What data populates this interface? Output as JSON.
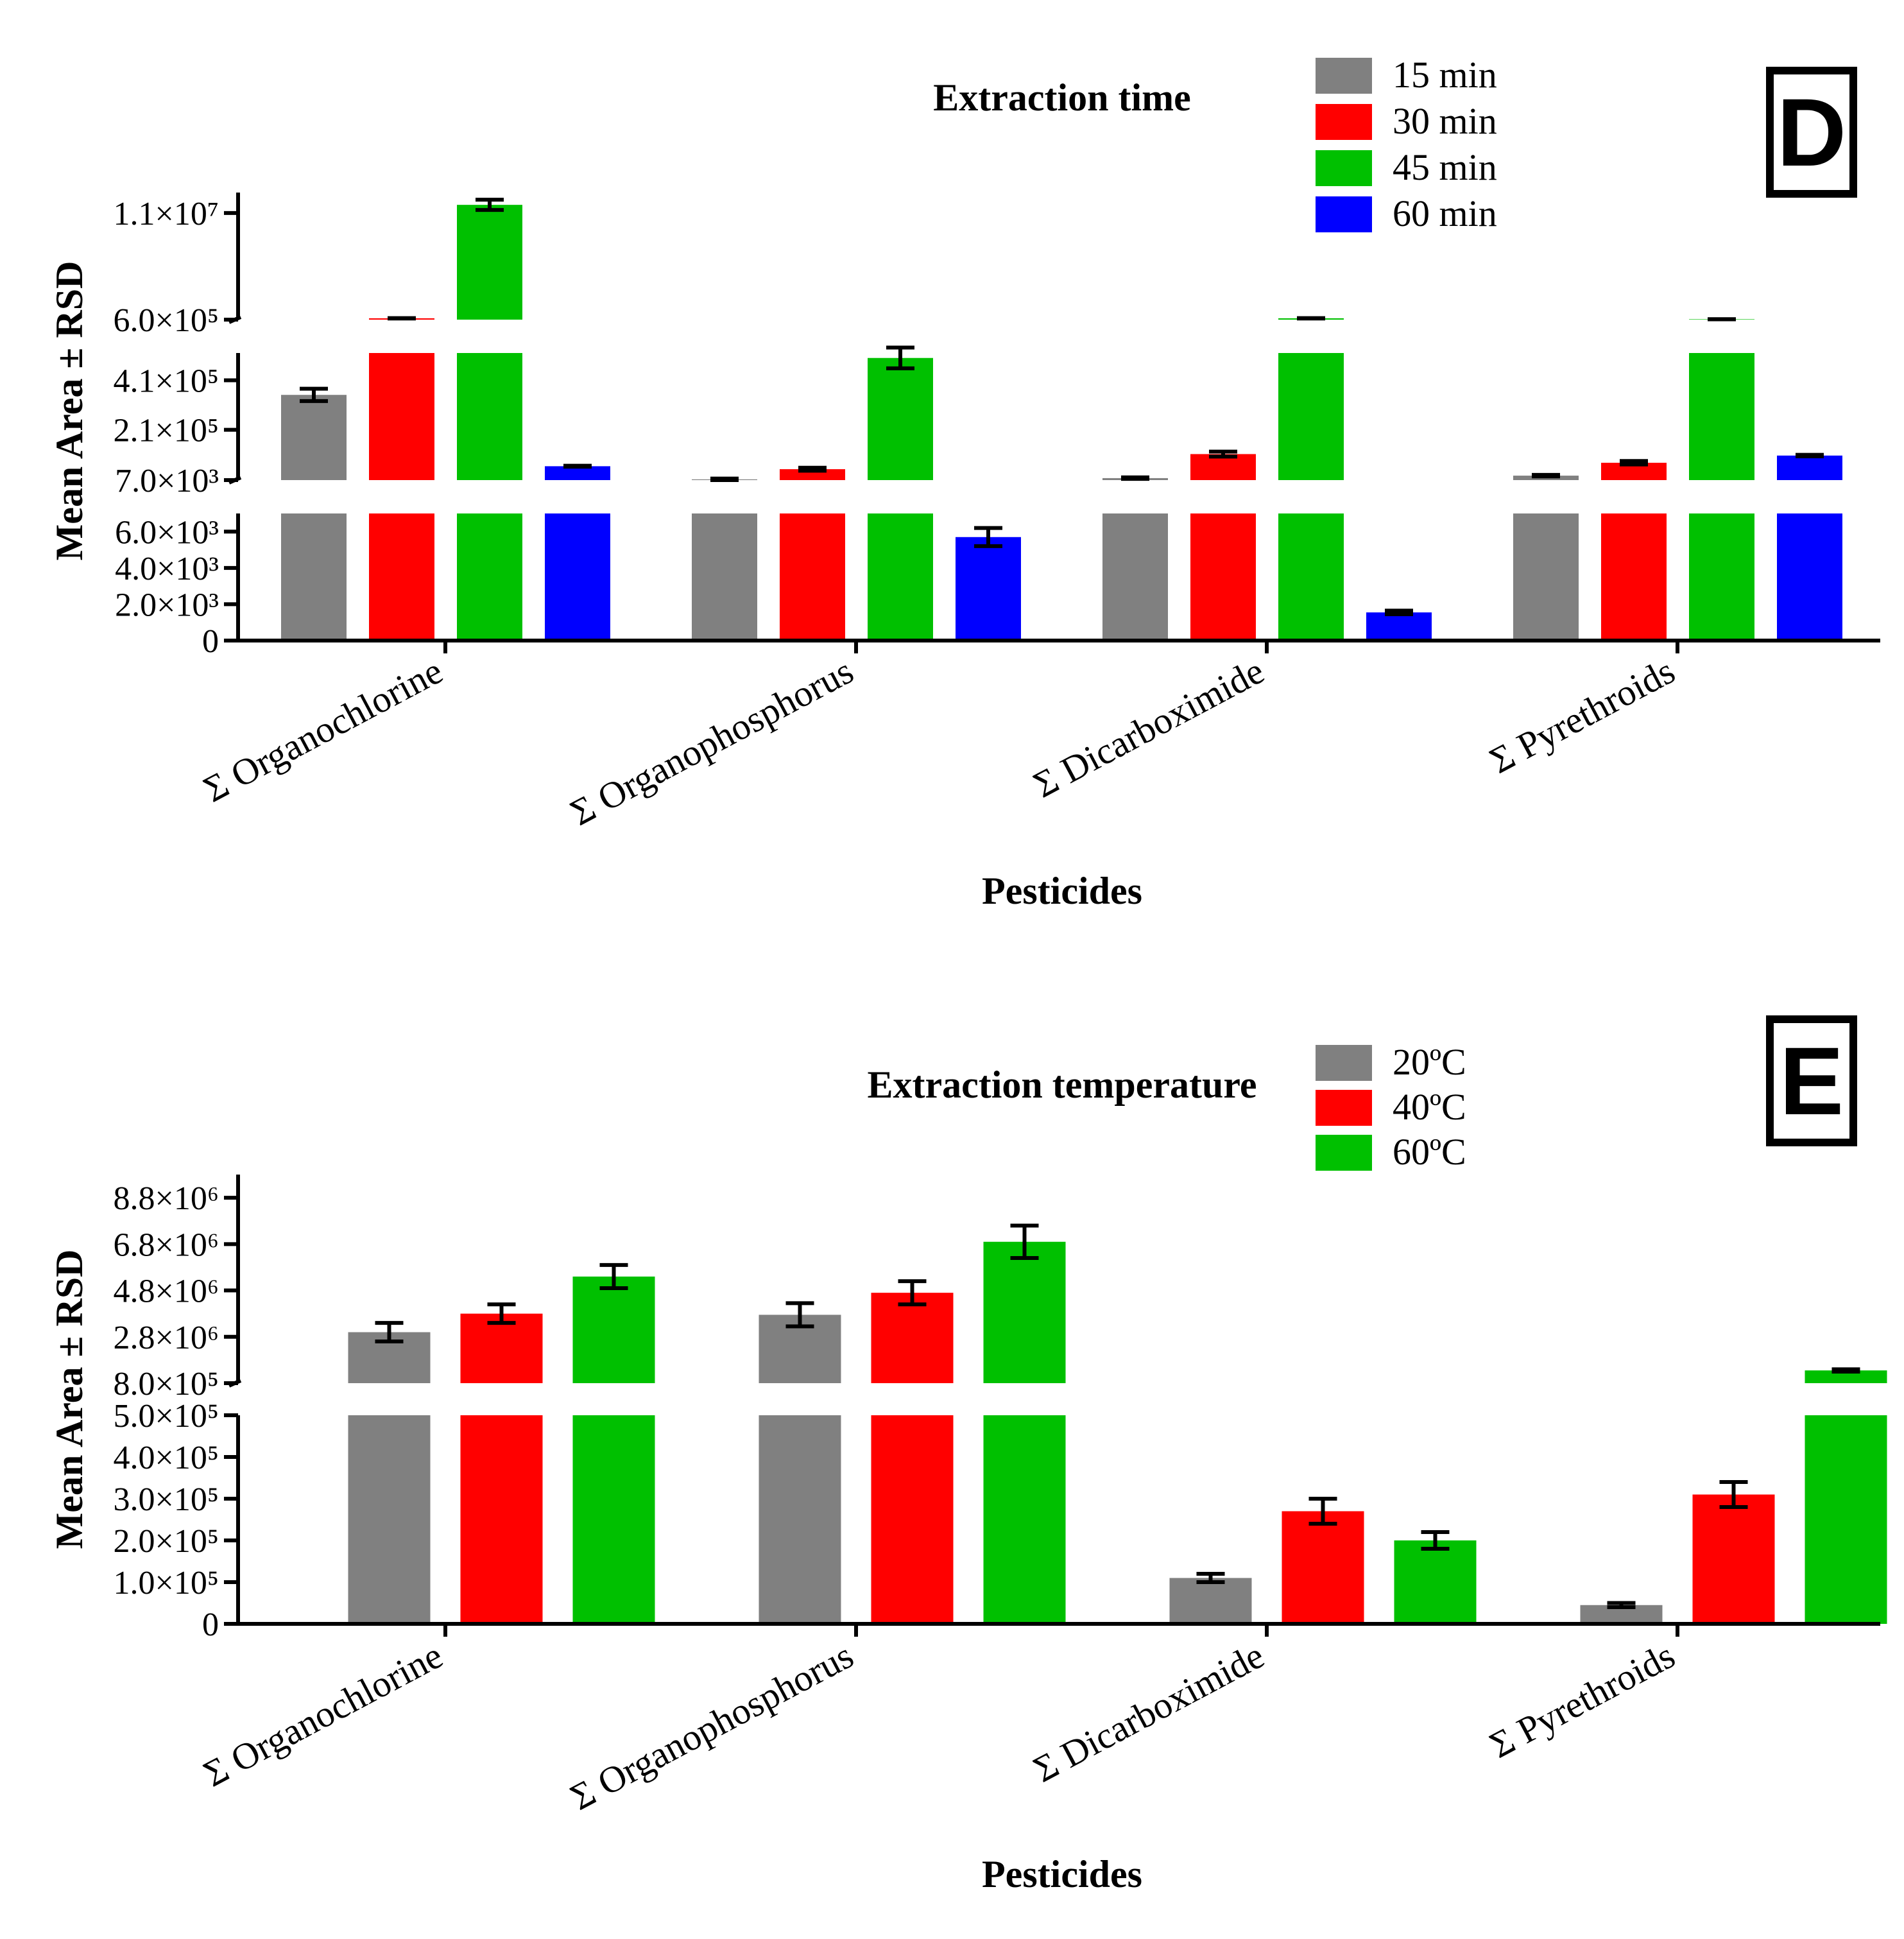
{
  "chart_data": [
    {
      "type": "bar",
      "panel": "D",
      "title": "Extraction time",
      "xlabel": "Pesticides",
      "ylabel": "Mean Area ± RSD",
      "categories": [
        "Σ Organochlorine",
        "Σ Organophosphorus",
        "Σ Dicarboximide",
        "Σ Pyrethroids"
      ],
      "series": [
        {
          "name": "15 min",
          "color": "#808080",
          "values": [
            351000,
            10000,
            15000,
            25000
          ],
          "errors": [
            25000,
            3000,
            3000,
            3000
          ]
        },
        {
          "name": "30 min",
          "color": "#ff0000",
          "values": [
            730000,
            51000,
            112000,
            77000
          ],
          "errors": [
            20000,
            6000,
            10000,
            7000
          ]
        },
        {
          "name": "45 min",
          "color": "#00c000",
          "values": [
            11800000,
            500000,
            730000,
            640000
          ],
          "errors": [
            500000,
            42000,
            20000,
            10000
          ]
        },
        {
          "name": "60 min",
          "color": "#0000ff",
          "values": [
            63000,
            5700,
            1550,
            106000
          ],
          "errors": [
            2000,
            500,
            100,
            3000
          ]
        }
      ],
      "axis_segments": [
        {
          "range": [
            0,
            7000
          ],
          "ticks": [
            0,
            2000,
            4000,
            6000
          ],
          "tick_labels": [
            "0",
            "2.0×10³",
            "4.0×10³",
            "6.0×10³"
          ]
        },
        {
          "range": [
            7000,
            520000
          ],
          "ticks": [
            7000,
            210000,
            410000
          ],
          "tick_labels": [
            "7.0×10³",
            "2.1×10⁵",
            "4.1×10⁵"
          ]
        },
        {
          "range": [
            600000,
            13000000
          ],
          "ticks": [
            600000,
            11000000
          ],
          "tick_labels": [
            "6.0×10⁵",
            "1.1×10⁷"
          ]
        }
      ],
      "legend": "top-right",
      "badge": "D"
    },
    {
      "type": "bar",
      "panel": "E",
      "title": "Extraction temperature",
      "xlabel": "Pesticides",
      "ylabel": "Mean Area ± RSD",
      "categories": [
        "Σ Organochlorine",
        "Σ Organophosphorus",
        "Σ Dicarboximide",
        "Σ Pyrethroids"
      ],
      "series": [
        {
          "name": "20ºC",
          "color": "#808080",
          "values": [
            3000000,
            3750000,
            110000,
            45000
          ],
          "errors": [
            400000,
            500000,
            10000,
            5000
          ]
        },
        {
          "name": "40ºC",
          "color": "#ff0000",
          "values": [
            3800000,
            4700000,
            270000,
            310000
          ],
          "errors": [
            400000,
            500000,
            30000,
            30000
          ]
        },
        {
          "name": "60ºC",
          "color": "#00c000",
          "values": [
            5400000,
            6900000,
            200000,
            1350000
          ],
          "errors": [
            500000,
            700000,
            20000,
            50000
          ]
        }
      ],
      "axis_segments": [
        {
          "range": [
            0,
            500000
          ],
          "ticks": [
            0,
            100000,
            200000,
            300000,
            400000,
            500000
          ],
          "tick_labels": [
            "0",
            "1.0×10⁵",
            "2.0×10⁵",
            "3.0×10⁵",
            "4.0×10⁵",
            "5.0×10⁵"
          ]
        },
        {
          "range": [
            800000,
            9800000
          ],
          "ticks": [
            800000,
            2800000,
            4800000,
            6800000,
            8800000
          ],
          "tick_labels": [
            "8.0×10⁵",
            "2.8×10⁶",
            "4.8×10⁶",
            "6.8×10⁶",
            "8.8×10⁶"
          ]
        }
      ],
      "legend": "top-right",
      "badge": "E"
    }
  ]
}
